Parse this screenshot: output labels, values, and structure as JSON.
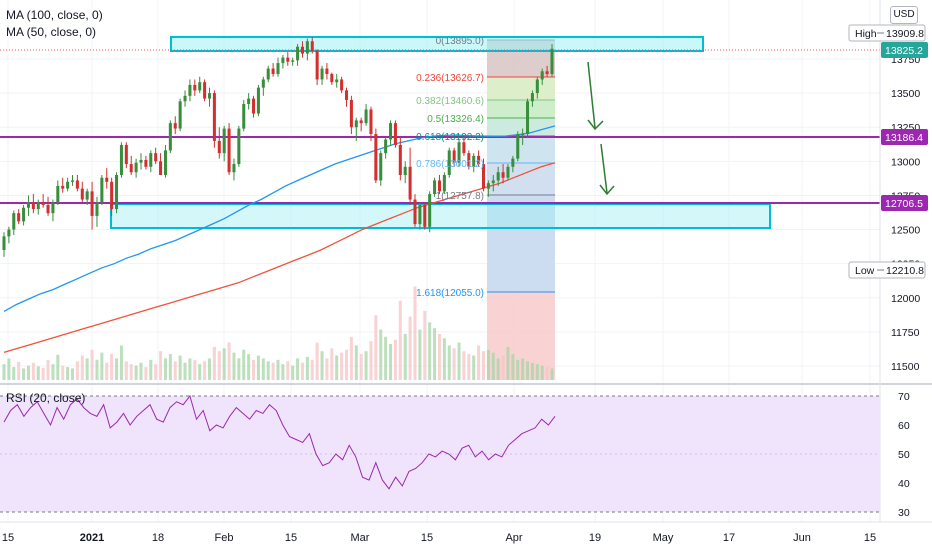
{
  "legend": {
    "ma100": "MA (100, close, 0)",
    "ma50": "MA (50, close, 0)",
    "rsi": "RSI (20, close)"
  },
  "currency": "USD",
  "price_axis": {
    "ticks": [
      "13750",
      "13500",
      "13250",
      "13000",
      "12750",
      "12500",
      "12250",
      "12000",
      "11750",
      "11500"
    ],
    "markers": [
      {
        "label": "High",
        "value": "13909.8",
        "color": "#ffffff",
        "text": "#131722",
        "border": "#b2b5be"
      },
      {
        "value": "13825.2",
        "color": "#26a69a",
        "text": "#ffffff"
      },
      {
        "value": "13186.4",
        "color": "#9c27b0",
        "text": "#ffffff"
      },
      {
        "value": "12706.5",
        "color": "#9c27b0",
        "text": "#ffffff"
      },
      {
        "label": "Low",
        "value": "12210.8",
        "color": "#ffffff",
        "text": "#131722",
        "border": "#b2b5be"
      }
    ]
  },
  "rsi_axis": {
    "ticks": [
      "70",
      "60",
      "50",
      "40",
      "30"
    ]
  },
  "time_axis": {
    "ticks": [
      "15",
      "2021",
      "18",
      "Feb",
      "15",
      "Mar",
      "15",
      "Apr",
      "19",
      "May",
      "17",
      "Jun",
      "15"
    ]
  },
  "fib_labels": [
    "0(13895.0)",
    "0.236(13626.7)",
    "0.382(13460.6)",
    "0.5(13326.4)",
    "0.618(13192.2)",
    "0.786(13001.2)",
    "1(12757.8)",
    "1.618(12055.0)"
  ],
  "chart_data": {
    "type": "candlestick",
    "symbol_series": [
      "MA (100, close, 0)",
      "MA (50, close, 0)"
    ],
    "ylim": [
      11400,
      14000
    ],
    "y_ticks": [
      11500,
      11750,
      12000,
      12250,
      12500,
      12750,
      13000,
      13250,
      13500,
      13750
    ],
    "colors": {
      "up": "#388e3c",
      "down": "#d32f2f",
      "ma50": "#2196f3",
      "ma100": "#f0533a",
      "rsi": "#9c27b0"
    },
    "candles": [
      [
        12350,
        12480,
        12300,
        12450
      ],
      [
        12450,
        12520,
        12400,
        12500
      ],
      [
        12500,
        12640,
        12460,
        12620
      ],
      [
        12620,
        12650,
        12540,
        12560
      ],
      [
        12560,
        12680,
        12530,
        12660
      ],
      [
        12660,
        12750,
        12600,
        12700
      ],
      [
        12700,
        12760,
        12620,
        12650
      ],
      [
        12650,
        12720,
        12610,
        12700
      ],
      [
        12700,
        12760,
        12660,
        12680
      ],
      [
        12680,
        12740,
        12600,
        12620
      ],
      [
        12620,
        12720,
        12560,
        12700
      ],
      [
        12700,
        12860,
        12680,
        12820
      ],
      [
        12820,
        12880,
        12770,
        12800
      ],
      [
        12800,
        12880,
        12780,
        12850
      ],
      [
        12850,
        12900,
        12820,
        12860
      ],
      [
        12860,
        12900,
        12780,
        12800
      ],
      [
        12800,
        12850,
        12700,
        12720
      ],
      [
        12720,
        12800,
        12680,
        12780
      ],
      [
        12780,
        12850,
        12500,
        12600
      ],
      [
        12600,
        12740,
        12520,
        12700
      ],
      [
        12700,
        12900,
        12680,
        12880
      ],
      [
        12880,
        12950,
        12800,
        12850
      ],
      [
        12850,
        12880,
        12600,
        12650
      ],
      [
        12650,
        12920,
        12620,
        12900
      ],
      [
        12900,
        13140,
        12880,
        13120
      ],
      [
        13120,
        13140,
        12950,
        12980
      ],
      [
        12980,
        13040,
        12900,
        12920
      ],
      [
        12920,
        13020,
        12880,
        12990
      ],
      [
        12990,
        13060,
        12940,
        13010
      ],
      [
        13010,
        13040,
        12940,
        12960
      ],
      [
        12960,
        13080,
        12920,
        13060
      ],
      [
        13060,
        13100,
        12980,
        13000
      ],
      [
        13000,
        13060,
        12900,
        12900
      ],
      [
        12900,
        13120,
        12880,
        13080
      ],
      [
        13080,
        13300,
        13060,
        13280
      ],
      [
        13280,
        13330,
        13200,
        13240
      ],
      [
        13240,
        13460,
        13220,
        13440
      ],
      [
        13440,
        13520,
        13400,
        13480
      ],
      [
        13480,
        13600,
        13440,
        13560
      ],
      [
        13560,
        13600,
        13480,
        13520
      ],
      [
        13520,
        13620,
        13500,
        13580
      ],
      [
        13580,
        13600,
        13440,
        13460
      ],
      [
        13460,
        13540,
        13400,
        13500
      ],
      [
        13500,
        13520,
        13100,
        13150
      ],
      [
        13150,
        13250,
        13020,
        13060
      ],
      [
        13060,
        13260,
        13000,
        13240
      ],
      [
        13240,
        13280,
        12900,
        12920
      ],
      [
        12920,
        13020,
        12860,
        12980
      ],
      [
        12980,
        13260,
        12960,
        13240
      ],
      [
        13240,
        13450,
        13220,
        13420
      ],
      [
        13420,
        13500,
        13380,
        13460
      ],
      [
        13460,
        13480,
        13320,
        13350
      ],
      [
        13350,
        13560,
        13330,
        13540
      ],
      [
        13540,
        13620,
        13480,
        13600
      ],
      [
        13600,
        13700,
        13580,
        13680
      ],
      [
        13680,
        13720,
        13620,
        13640
      ],
      [
        13640,
        13760,
        13620,
        13720
      ],
      [
        13720,
        13780,
        13680,
        13760
      ],
      [
        13760,
        13800,
        13700,
        13730
      ],
      [
        13730,
        13760,
        13700,
        13740
      ],
      [
        13740,
        13860,
        13700,
        13840
      ],
      [
        13840,
        13880,
        13760,
        13790
      ],
      [
        13790,
        13900,
        13740,
        13880
      ],
      [
        13880,
        13910,
        13790,
        13810
      ],
      [
        13810,
        13820,
        13560,
        13600
      ],
      [
        13600,
        13700,
        13560,
        13680
      ],
      [
        13680,
        13720,
        13600,
        13640
      ],
      [
        13640,
        13650,
        13560,
        13580
      ],
      [
        13580,
        13640,
        13540,
        13600
      ],
      [
        13600,
        13620,
        13500,
        13520
      ],
      [
        13520,
        13540,
        13400,
        13450
      ],
      [
        13450,
        13480,
        13200,
        13250
      ],
      [
        13250,
        13320,
        13150,
        13300
      ],
      [
        13300,
        13320,
        13220,
        13280
      ],
      [
        13280,
        13420,
        13260,
        13380
      ],
      [
        13380,
        13400,
        13150,
        13200
      ],
      [
        13200,
        13240,
        12840,
        12860
      ],
      [
        12860,
        13080,
        12820,
        13060
      ],
      [
        13060,
        13180,
        13020,
        13160
      ],
      [
        13160,
        13300,
        13120,
        13280
      ],
      [
        13280,
        13300,
        13100,
        13120
      ],
      [
        13120,
        13180,
        12860,
        12900
      ],
      [
        12900,
        13000,
        12840,
        12960
      ],
      [
        12960,
        13100,
        12680,
        12720
      ],
      [
        12720,
        12760,
        12520,
        12540
      ],
      [
        12540,
        12700,
        12500,
        12680
      ],
      [
        12680,
        12700,
        12500,
        12520
      ],
      [
        12520,
        12780,
        12480,
        12760
      ],
      [
        12760,
        12880,
        12740,
        12860
      ],
      [
        12860,
        12900,
        12760,
        12780
      ],
      [
        12780,
        12920,
        12760,
        12900
      ],
      [
        12900,
        13100,
        12880,
        13080
      ],
      [
        13080,
        13100,
        12960,
        12990
      ],
      [
        12990,
        13160,
        12960,
        13140
      ],
      [
        13140,
        13180,
        13040,
        13060
      ],
      [
        13060,
        13080,
        12940,
        12960
      ],
      [
        12960,
        13060,
        12920,
        13040
      ],
      [
        13040,
        13080,
        12960,
        12980
      ],
      [
        12980,
        13020,
        12780,
        12800
      ],
      [
        12800,
        12860,
        12740,
        12840
      ],
      [
        12840,
        12900,
        12780,
        12860
      ],
      [
        12860,
        12960,
        12820,
        12920
      ],
      [
        12920,
        12980,
        12840,
        12880
      ],
      [
        12880,
        12980,
        12860,
        12960
      ],
      [
        12960,
        13040,
        12920,
        13020
      ],
      [
        13020,
        13220,
        13000,
        13200
      ],
      [
        13200,
        13240,
        13120,
        13200
      ],
      [
        13200,
        13460,
        13180,
        13440
      ],
      [
        13440,
        13520,
        13400,
        13500
      ],
      [
        13500,
        13620,
        13460,
        13600
      ],
      [
        13600,
        13680,
        13560,
        13660
      ],
      [
        13660,
        13700,
        13620,
        13640
      ],
      [
        13640,
        13860,
        13620,
        13825
      ]
    ],
    "volume": [
      22,
      30,
      18,
      25,
      16,
      20,
      24,
      19,
      17,
      28,
      22,
      35,
      20,
      18,
      16,
      26,
      34,
      30,
      42,
      28,
      38,
      24,
      36,
      30,
      48,
      26,
      22,
      20,
      24,
      18,
      28,
      22,
      40,
      30,
      36,
      26,
      34,
      24,
      30,
      28,
      22,
      26,
      30,
      46,
      40,
      44,
      52,
      38,
      30,
      42,
      36,
      28,
      34,
      30,
      26,
      24,
      28,
      22,
      26,
      20,
      30,
      24,
      32,
      28,
      52,
      40,
      30,
      44,
      34,
      38,
      42,
      60,
      48,
      36,
      40,
      54,
      90,
      70,
      60,
      50,
      56,
      110,
      64,
      88,
      130,
      70,
      96,
      80,
      72,
      64,
      58,
      48,
      44,
      52,
      40,
      36,
      34,
      48,
      40,
      42,
      38,
      30,
      34,
      46,
      36,
      28,
      30,
      26,
      24,
      22,
      20,
      18,
      16,
      14
    ],
    "ma50": [
      11900,
      11950,
      11990,
      12030,
      12060,
      12100,
      12140,
      12180,
      12220,
      12250,
      12290,
      12320,
      12360,
      12390,
      12420,
      12460,
      12500,
      12540,
      12580,
      12630,
      12680,
      12720,
      12770,
      12820,
      12860,
      12900,
      12940,
      12980,
      13010,
      13040,
      13070,
      13100,
      13130,
      13150,
      13170,
      13185,
      13190,
      13192,
      13188,
      13186,
      13184,
      13186,
      13195,
      13210,
      13235,
      13260
    ],
    "ma100": [
      11600,
      11630,
      11660,
      11690,
      11720,
      11750,
      11780,
      11810,
      11840,
      11870,
      11900,
      11930,
      11960,
      11990,
      12020,
      12050,
      12080,
      12110,
      12150,
      12190,
      12230,
      12270,
      12310,
      12350,
      12400,
      12450,
      12500,
      12540,
      12580,
      12620,
      12660,
      12690,
      12720,
      12750,
      12780,
      12810,
      12840,
      12880,
      12920,
      12960,
      12990
    ]
  }
}
